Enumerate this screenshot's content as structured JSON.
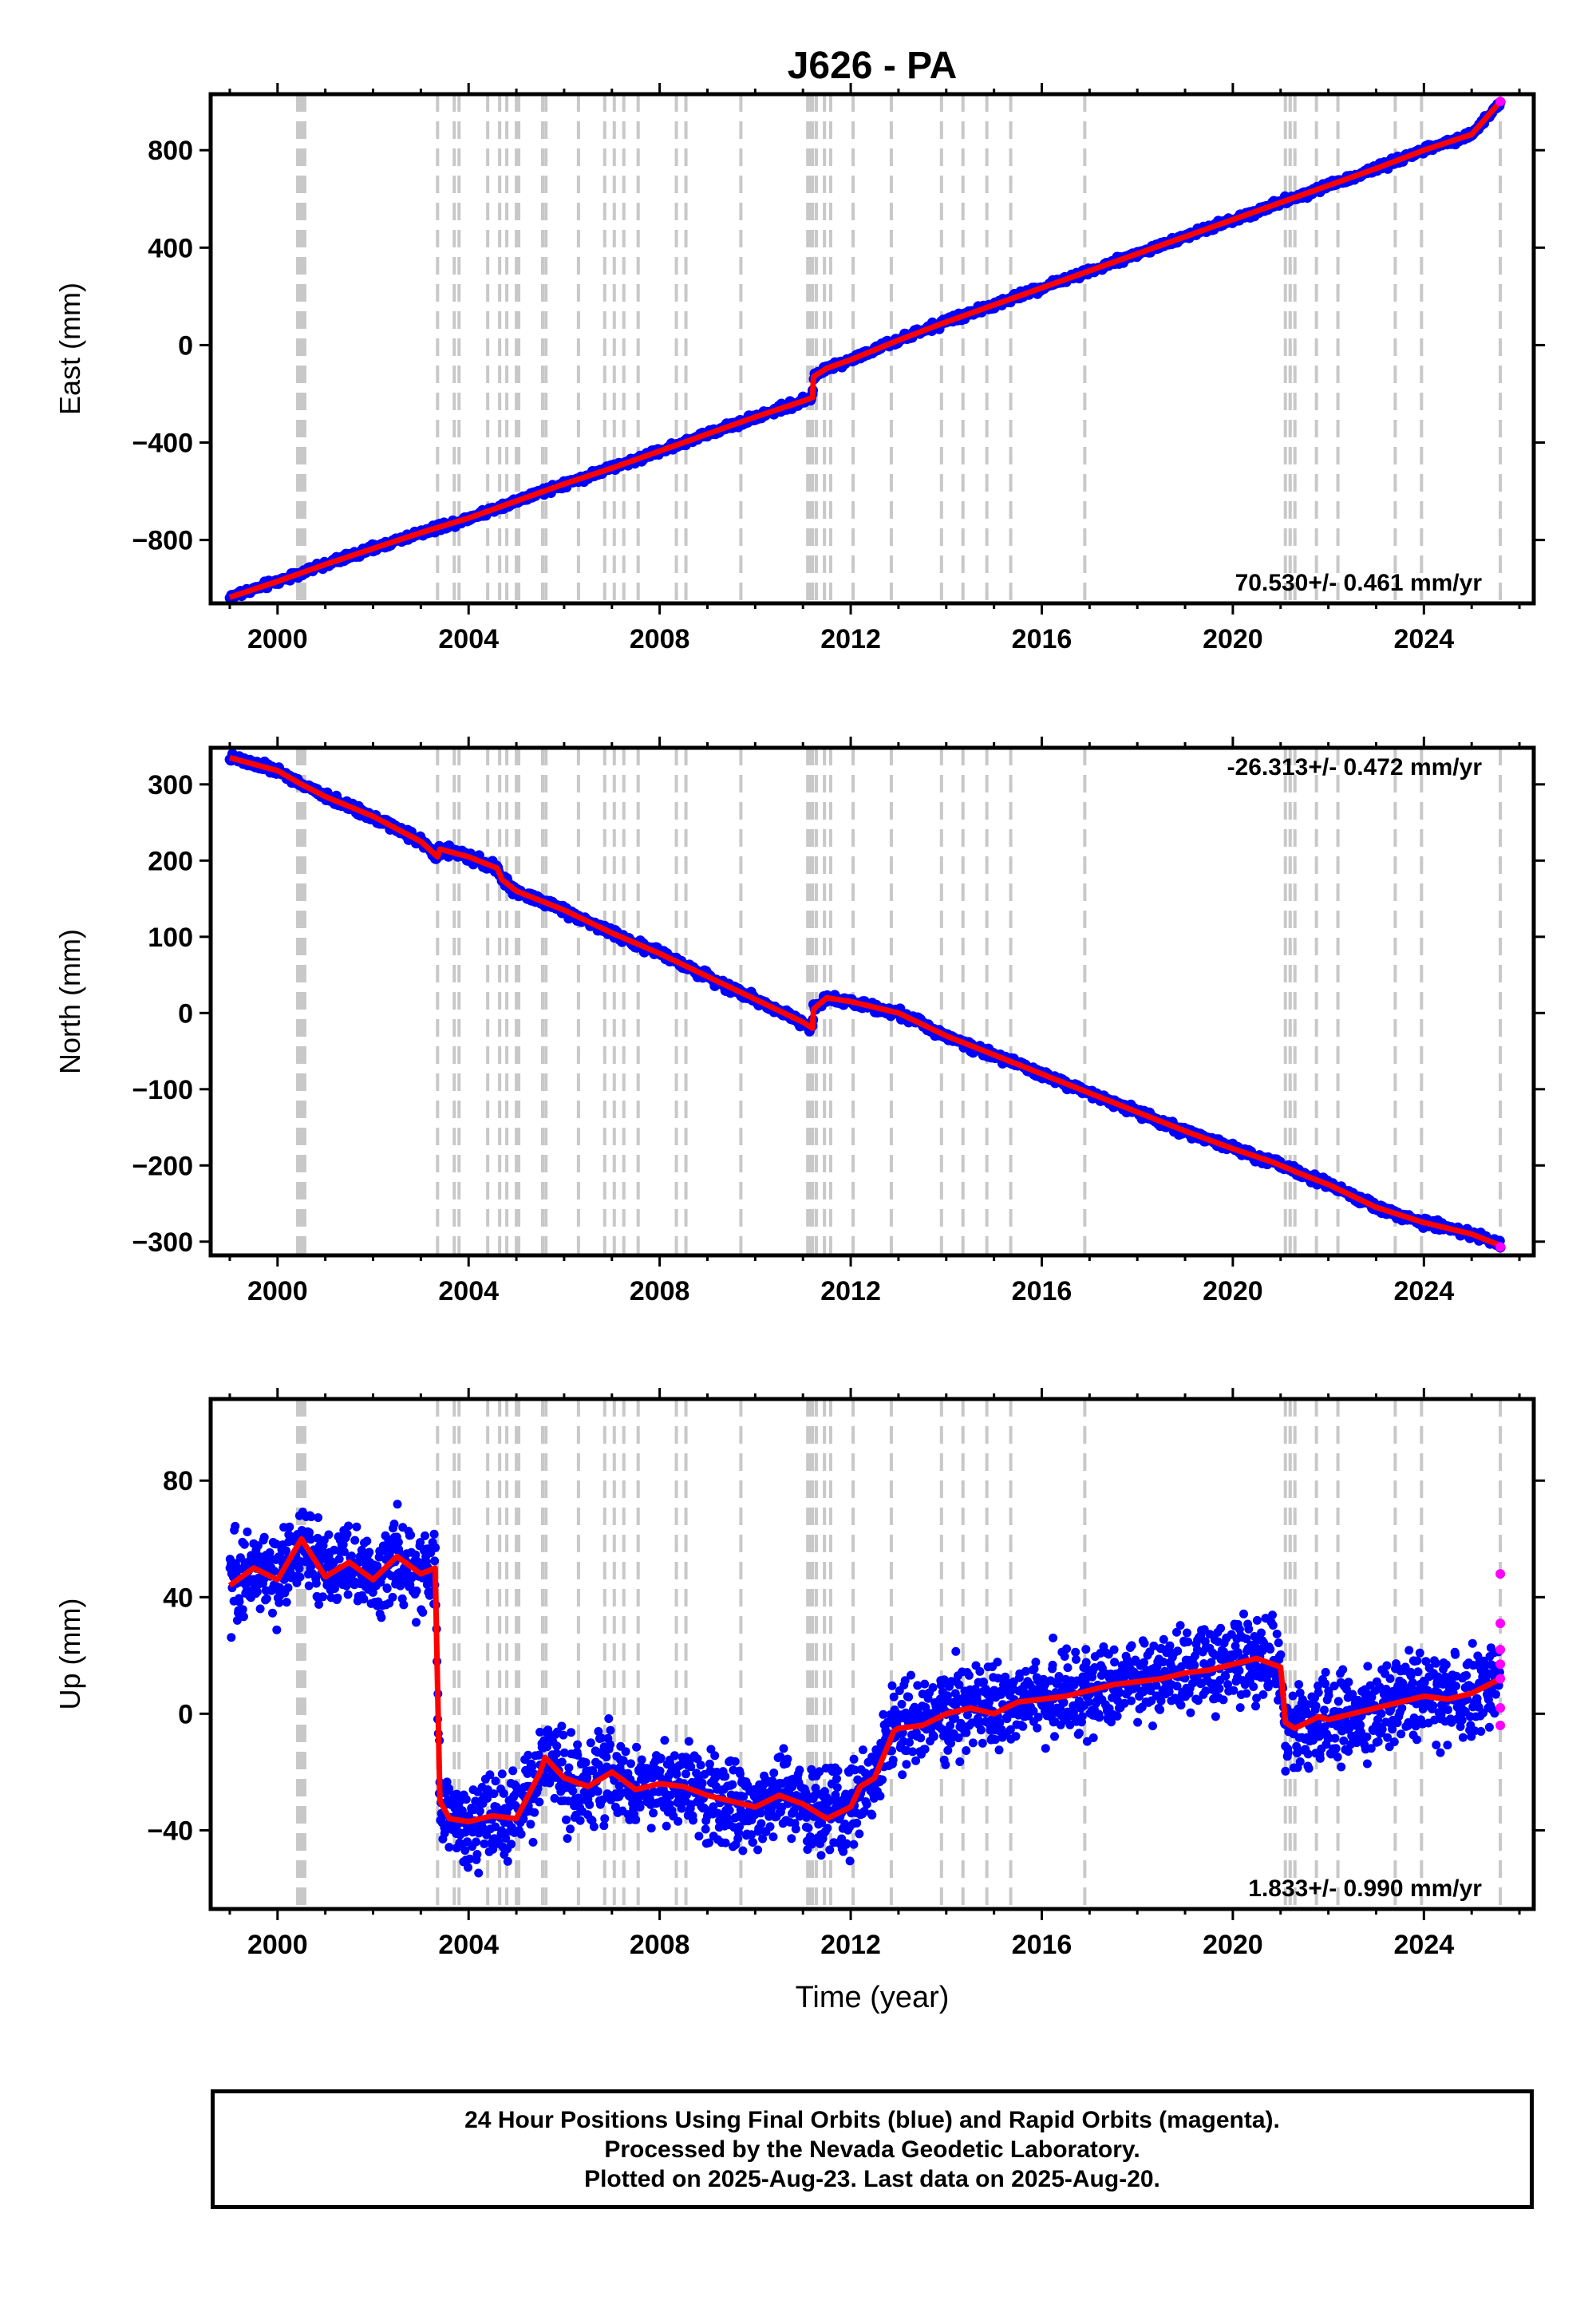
{
  "chart_data": {
    "title": "J626 - PA",
    "x_axis": {
      "label": "Time (year)",
      "range": [
        1998.6,
        2026.3
      ],
      "ticks": [
        2000,
        2004,
        2008,
        2012,
        2016,
        2020,
        2024
      ],
      "tick_labels": [
        "2000",
        "2004",
        "2008",
        "2012",
        "2016",
        "2020",
        "2024"
      ]
    },
    "event_lines": [
      2000.42,
      2000.47,
      2000.52,
      2000.57,
      2003.35,
      2003.7,
      2003.8,
      2004.4,
      2004.65,
      2004.8,
      2005.0,
      2005.05,
      2005.55,
      2005.62,
      2006.3,
      2006.85,
      2007.05,
      2007.25,
      2007.55,
      2008.35,
      2008.55,
      2009.7,
      2011.1,
      2011.15,
      2011.2,
      2011.28,
      2011.45,
      2011.58,
      2012.05,
      2012.85,
      2013.9,
      2014.35,
      2014.85,
      2015.35,
      2016.9,
      2021.1,
      2021.2,
      2021.3,
      2021.75,
      2022.2,
      2023.4,
      2023.95,
      2025.6
    ],
    "panels": [
      {
        "type": "scatter",
        "ylabel": "East (mm)",
        "ylim": [
          -1060,
          1030
        ],
        "yticks": [
          -800,
          -400,
          0,
          400,
          800
        ],
        "ytick_labels": [
          "−800",
          "−400",
          "0",
          "400",
          "800"
        ],
        "velocity": "70.530+/- 0.461 mm/yr",
        "series": [
          {
            "color": "#0000ff",
            "kind": "points",
            "x": [
              1999.0,
              2000.0,
              2001.0,
              2002.0,
              2003.0,
              2004.0,
              2005.0,
              2006.0,
              2007.0,
              2008.0,
              2009.0,
              2010.0,
              2011.0,
              2011.2,
              2011.22,
              2011.5,
              2012.0,
              2013.0,
              2014.0,
              2015.0,
              2016.0,
              2017.0,
              2018.0,
              2019.0,
              2020.0,
              2021.0,
              2022.0,
              2023.0,
              2024.0,
              2025.0,
              2025.6
            ],
            "y": [
              -1035,
              -970,
              -900,
              -835,
              -770,
              -710,
              -640,
              -570,
              -505,
              -435,
              -365,
              -295,
              -230,
              -215,
              -130,
              -95,
              -60,
              20,
              95,
              165,
              235,
              305,
              375,
              445,
              515,
              585,
              655,
              725,
              800,
              865,
              1000
            ]
          },
          {
            "color": "#ff0000",
            "kind": "line",
            "x": [
              1999.0,
              2000.0,
              2001.0,
              2002.0,
              2003.0,
              2004.0,
              2005.0,
              2006.0,
              2007.0,
              2008.0,
              2009.0,
              2010.0,
              2011.0,
              2011.2,
              2011.22,
              2011.5,
              2012.0,
              2013.0,
              2014.0,
              2015.0,
              2016.0,
              2017.0,
              2018.0,
              2019.0,
              2020.0,
              2021.0,
              2022.0,
              2023.0,
              2024.0,
              2025.0,
              2025.6
            ],
            "y": [
              -1035,
              -970,
              -900,
              -835,
              -770,
              -710,
              -640,
              -570,
              -505,
              -435,
              -365,
              -295,
              -230,
              -215,
              -130,
              -95,
              -60,
              20,
              95,
              165,
              235,
              305,
              375,
              445,
              515,
              585,
              655,
              725,
              800,
              865,
              1000
            ]
          },
          {
            "color": "#ff00ff",
            "kind": "points",
            "x": [
              2025.6
            ],
            "y": [
              1000
            ]
          }
        ]
      },
      {
        "type": "scatter",
        "ylabel": "North (mm)",
        "ylim": [
          -318,
          348
        ],
        "yticks": [
          -300,
          -200,
          -100,
          0,
          100,
          200,
          300
        ],
        "ytick_labels": [
          "−300",
          "−200",
          "−100",
          "0",
          "100",
          "200",
          "300"
        ],
        "velocity": "-26.313+/- 0.472 mm/yr",
        "series": [
          {
            "color": "#0000ff",
            "kind": "points",
            "x": [
              1999.0,
              2000.0,
              2000.5,
              2001.0,
              2002.0,
              2003.0,
              2003.35,
              2003.4,
              2004.0,
              2004.6,
              2004.7,
              2005.0,
              2006.0,
              2007.0,
              2008.0,
              2009.0,
              2010.0,
              2011.0,
              2011.2,
              2011.22,
              2011.5,
              2012.0,
              2013.0,
              2014.0,
              2015.0,
              2016.0,
              2017.0,
              2018.0,
              2019.0,
              2020.0,
              2020.8,
              2021.2,
              2021.3,
              2022.0,
              2023.0,
              2024.0,
              2025.0,
              2025.6
            ],
            "y": [
              335,
              318,
              300,
              284,
              258,
              225,
              205,
              215,
              205,
              190,
              175,
              160,
              135,
              105,
              78,
              48,
              18,
              -12,
              -20,
              5,
              20,
              15,
              0,
              -30,
              -55,
              -80,
              -105,
              -130,
              -155,
              -178,
              -195,
              -205,
              -208,
              -225,
              -255,
              -275,
              -290,
              -305
            ]
          },
          {
            "color": "#ff0000",
            "kind": "line",
            "x": [
              1999.0,
              2000.0,
              2000.5,
              2001.0,
              2002.0,
              2003.0,
              2003.35,
              2003.4,
              2004.0,
              2004.6,
              2004.7,
              2005.0,
              2006.0,
              2007.0,
              2008.0,
              2009.0,
              2010.0,
              2011.0,
              2011.2,
              2011.22,
              2011.5,
              2012.0,
              2013.0,
              2014.0,
              2015.0,
              2016.0,
              2017.0,
              2018.0,
              2019.0,
              2020.0,
              2020.8,
              2021.2,
              2021.3,
              2022.0,
              2023.0,
              2024.0,
              2025.0,
              2025.6
            ],
            "y": [
              335,
              318,
              300,
              284,
              258,
              225,
              205,
              215,
              205,
              190,
              175,
              160,
              135,
              105,
              78,
              48,
              18,
              -12,
              -20,
              5,
              20,
              15,
              0,
              -30,
              -55,
              -80,
              -105,
              -130,
              -155,
              -178,
              -195,
              -205,
              -208,
              -225,
              -255,
              -275,
              -290,
              -305
            ]
          },
          {
            "color": "#ff00ff",
            "kind": "points",
            "x": [
              2025.6
            ],
            "y": [
              -307
            ]
          }
        ]
      },
      {
        "type": "scatter",
        "xlabel": "Time (year)",
        "ylabel": "Up (mm)",
        "ylim": [
          -67,
          108
        ],
        "yticks": [
          -40,
          0,
          40,
          80
        ],
        "ytick_labels": [
          "−40",
          "0",
          "40",
          "80"
        ],
        "velocity": "1.833+/- 0.990 mm/yr",
        "series": [
          {
            "color": "#0000ff",
            "kind": "points",
            "x": [
              1999.0,
              1999.5,
              2000.0,
              2000.5,
              2001.0,
              2001.5,
              2002.0,
              2002.5,
              2003.0,
              2003.3,
              2003.4,
              2003.6,
              2004.0,
              2004.5,
              2005.0,
              2005.5,
              2005.6,
              2006.0,
              2006.5,
              2007.0,
              2007.5,
              2008.0,
              2008.5,
              2009.0,
              2009.5,
              2010.0,
              2010.5,
              2011.0,
              2011.5,
              2012.0,
              2012.2,
              2012.5,
              2012.9,
              2013.0,
              2013.5,
              2014.0,
              2014.5,
              2015.0,
              2015.5,
              2016.0,
              2016.5,
              2017.0,
              2017.5,
              2018.0,
              2018.5,
              2019.0,
              2019.5,
              2020.0,
              2020.5,
              2021.0,
              2021.1,
              2021.3,
              2021.8,
              2022.0,
              2022.5,
              2023.0,
              2023.5,
              2024.0,
              2024.5,
              2025.0,
              2025.6
            ],
            "y": [
              44,
              50,
              46,
              60,
              47,
              52,
              46,
              54,
              48,
              50,
              -30,
              -36,
              -37,
              -35,
              -36,
              -20,
              -15,
              -22,
              -25,
              -20,
              -26,
              -24,
              -25,
              -28,
              -30,
              -32,
              -28,
              -31,
              -36,
              -32,
              -25,
              -22,
              -6,
              -5,
              -4,
              0,
              2,
              0,
              4,
              5,
              6,
              8,
              10,
              11,
              12,
              14,
              15,
              17,
              19,
              16,
              -3,
              -5,
              -1,
              -2,
              0,
              2,
              4,
              6,
              5,
              7,
              12
            ]
          },
          {
            "color": "#ff0000",
            "kind": "line",
            "x": [
              1999.0,
              1999.5,
              2000.0,
              2000.5,
              2001.0,
              2001.5,
              2002.0,
              2002.5,
              2003.0,
              2003.3,
              2003.4,
              2003.6,
              2004.0,
              2004.5,
              2005.0,
              2005.5,
              2005.6,
              2006.0,
              2006.5,
              2007.0,
              2007.5,
              2008.0,
              2008.5,
              2009.0,
              2009.5,
              2010.0,
              2010.5,
              2011.0,
              2011.5,
              2012.0,
              2012.2,
              2012.5,
              2012.9,
              2013.0,
              2013.5,
              2014.0,
              2014.5,
              2015.0,
              2015.5,
              2016.0,
              2016.5,
              2017.0,
              2017.5,
              2018.0,
              2018.5,
              2019.0,
              2019.5,
              2020.0,
              2020.5,
              2021.0,
              2021.1,
              2021.3,
              2021.8,
              2022.0,
              2022.5,
              2023.0,
              2023.5,
              2024.0,
              2024.5,
              2025.0,
              2025.6
            ],
            "y": [
              44,
              50,
              46,
              60,
              47,
              52,
              46,
              54,
              48,
              50,
              -30,
              -36,
              -37,
              -35,
              -36,
              -20,
              -15,
              -22,
              -25,
              -20,
              -26,
              -24,
              -25,
              -28,
              -30,
              -32,
              -28,
              -31,
              -36,
              -32,
              -25,
              -22,
              -6,
              -5,
              -4,
              0,
              2,
              0,
              4,
              5,
              6,
              8,
              10,
              11,
              12,
              14,
              15,
              17,
              19,
              16,
              -3,
              -5,
              -1,
              -2,
              0,
              2,
              4,
              6,
              5,
              7,
              12
            ]
          },
          {
            "color": "#ff00ff",
            "kind": "points",
            "x": [
              2025.6,
              2025.6,
              2025.6,
              2025.6,
              2025.6,
              2025.6,
              2025.6
            ],
            "y": [
              48,
              31,
              22,
              17,
              12,
              2,
              -4
            ]
          }
        ]
      }
    ]
  },
  "footer": {
    "line1": "24 Hour Positions Using Final Orbits (blue) and Rapid Orbits (magenta).",
    "line2": "Processed by the Nevada Geodetic Laboratory.",
    "line3": "Plotted on 2025-Aug-23. Last data on 2025-Aug-20."
  }
}
